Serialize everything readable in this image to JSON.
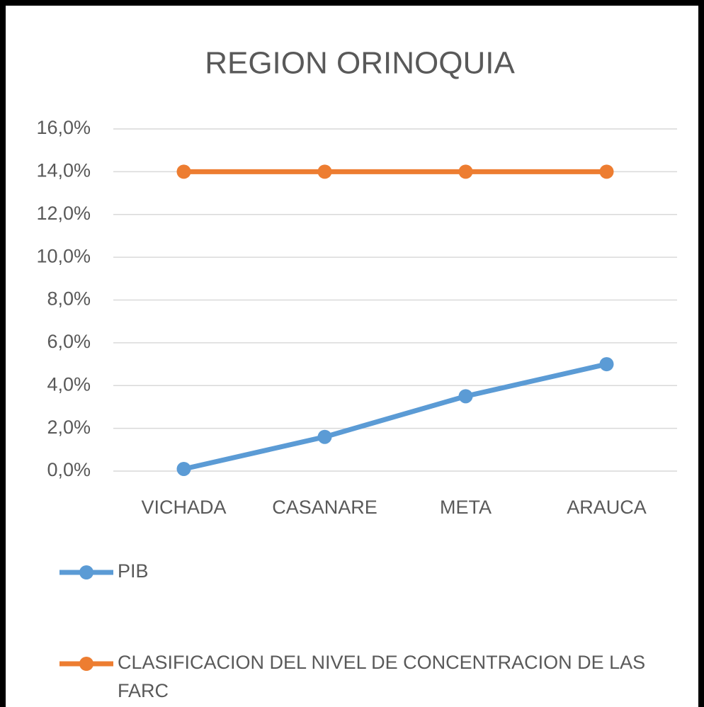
{
  "chart_data": {
    "type": "line",
    "title": "REGION ORINOQUIA",
    "categories": [
      "VICHADA",
      "CASANARE",
      "META",
      "ARAUCA"
    ],
    "series": [
      {
        "name": "PIB",
        "color": "#5b9bd5",
        "values": [
          0.1,
          1.6,
          3.5,
          5.0
        ]
      },
      {
        "name": "CLASIFICACION DEL NIVEL DE CONCENTRACION DE LAS FARC",
        "color": "#ed7d31",
        "values": [
          14.0,
          14.0,
          14.0,
          14.0
        ]
      }
    ],
    "ylim": [
      0,
      16
    ],
    "yticks": [
      {
        "value": 0,
        "label": "0,0%"
      },
      {
        "value": 2,
        "label": "2,0%"
      },
      {
        "value": 4,
        "label": "4,0%"
      },
      {
        "value": 6,
        "label": "6,0%"
      },
      {
        "value": 8,
        "label": "8,0%"
      },
      {
        "value": 10,
        "label": "10,0%"
      },
      {
        "value": 12,
        "label": "12,0%"
      },
      {
        "value": 14,
        "label": "14,0%"
      },
      {
        "value": 16,
        "label": "16,0%"
      }
    ],
    "grid": true,
    "legend": "bottom"
  }
}
